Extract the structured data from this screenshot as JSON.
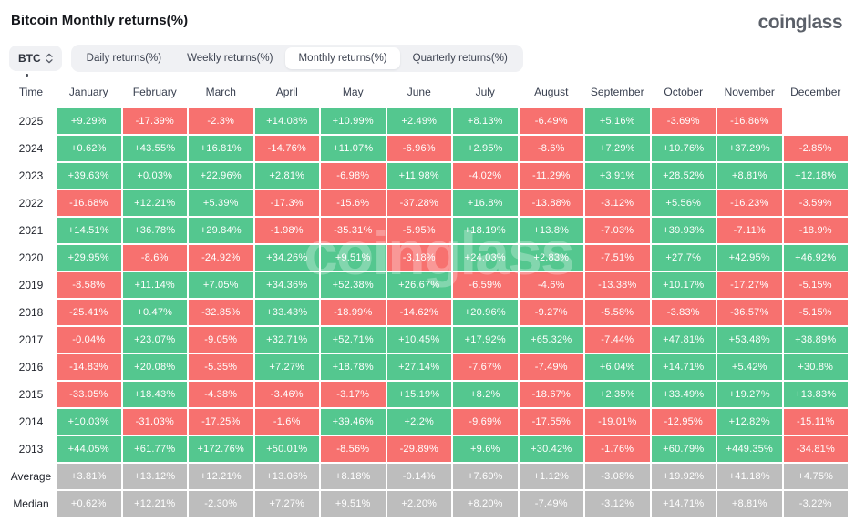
{
  "header": {
    "title": "Bitcoin Monthly returns(%)",
    "logo": "coinglass"
  },
  "controls": {
    "symbol_selector": {
      "label": "BTC",
      "icon": "updown-chevrons-icon"
    },
    "tabs": [
      {
        "label": "Daily returns(%)",
        "active": false
      },
      {
        "label": "Weekly returns(%)",
        "active": false
      },
      {
        "label": "Monthly returns(%)",
        "active": true
      },
      {
        "label": "Quarterly returns(%)",
        "active": false
      }
    ]
  },
  "colors": {
    "positive": "#54c78f",
    "negative": "#f7716f",
    "neutral": "#bdbdbd"
  },
  "watermark": "coinglass",
  "chart_data": {
    "type": "heatmap",
    "title": "Bitcoin Monthly returns(%)",
    "columns": [
      "Time",
      "January",
      "February",
      "March",
      "April",
      "May",
      "June",
      "July",
      "August",
      "September",
      "October",
      "November",
      "December"
    ],
    "rows": [
      {
        "label": "2025",
        "kind": "year",
        "values": [
          "+9.29%",
          "-17.39%",
          "-2.3%",
          "+14.08%",
          "+10.99%",
          "+2.49%",
          "+8.13%",
          "-6.49%",
          "+5.16%",
          "-3.69%",
          "-16.86%",
          null
        ]
      },
      {
        "label": "2024",
        "kind": "year",
        "values": [
          "+0.62%",
          "+43.55%",
          "+16.81%",
          "-14.76%",
          "+11.07%",
          "-6.96%",
          "+2.95%",
          "-8.6%",
          "+7.29%",
          "+10.76%",
          "+37.29%",
          "-2.85%"
        ]
      },
      {
        "label": "2023",
        "kind": "year",
        "values": [
          "+39.63%",
          "+0.03%",
          "+22.96%",
          "+2.81%",
          "-6.98%",
          "+11.98%",
          "-4.02%",
          "-11.29%",
          "+3.91%",
          "+28.52%",
          "+8.81%",
          "+12.18%"
        ]
      },
      {
        "label": "2022",
        "kind": "year",
        "values": [
          "-16.68%",
          "+12.21%",
          "+5.39%",
          "-17.3%",
          "-15.6%",
          "-37.28%",
          "+16.8%",
          "-13.88%",
          "-3.12%",
          "+5.56%",
          "-16.23%",
          "-3.59%"
        ]
      },
      {
        "label": "2021",
        "kind": "year",
        "values": [
          "+14.51%",
          "+36.78%",
          "+29.84%",
          "-1.98%",
          "-35.31%",
          "-5.95%",
          "+18.19%",
          "+13.8%",
          "-7.03%",
          "+39.93%",
          "-7.11%",
          "-18.9%"
        ]
      },
      {
        "label": "2020",
        "kind": "year",
        "values": [
          "+29.95%",
          "-8.6%",
          "-24.92%",
          "+34.26%",
          "+9.51%",
          "-3.18%",
          "+24.03%",
          "+2.83%",
          "-7.51%",
          "+27.7%",
          "+42.95%",
          "+46.92%"
        ]
      },
      {
        "label": "2019",
        "kind": "year",
        "values": [
          "-8.58%",
          "+11.14%",
          "+7.05%",
          "+34.36%",
          "+52.38%",
          "+26.67%",
          "-6.59%",
          "-4.6%",
          "-13.38%",
          "+10.17%",
          "-17.27%",
          "-5.15%"
        ]
      },
      {
        "label": "2018",
        "kind": "year",
        "values": [
          "-25.41%",
          "+0.47%",
          "-32.85%",
          "+33.43%",
          "-18.99%",
          "-14.62%",
          "+20.96%",
          "-9.27%",
          "-5.58%",
          "-3.83%",
          "-36.57%",
          "-5.15%"
        ]
      },
      {
        "label": "2017",
        "kind": "year",
        "values": [
          "-0.04%",
          "+23.07%",
          "-9.05%",
          "+32.71%",
          "+52.71%",
          "+10.45%",
          "+17.92%",
          "+65.32%",
          "-7.44%",
          "+47.81%",
          "+53.48%",
          "+38.89%"
        ]
      },
      {
        "label": "2016",
        "kind": "year",
        "values": [
          "-14.83%",
          "+20.08%",
          "-5.35%",
          "+7.27%",
          "+18.78%",
          "+27.14%",
          "-7.67%",
          "-7.49%",
          "+6.04%",
          "+14.71%",
          "+5.42%",
          "+30.8%"
        ]
      },
      {
        "label": "2015",
        "kind": "year",
        "values": [
          "-33.05%",
          "+18.43%",
          "-4.38%",
          "-3.46%",
          "-3.17%",
          "+15.19%",
          "+8.2%",
          "-18.67%",
          "+2.35%",
          "+33.49%",
          "+19.27%",
          "+13.83%"
        ]
      },
      {
        "label": "2014",
        "kind": "year",
        "values": [
          "+10.03%",
          "-31.03%",
          "-17.25%",
          "-1.6%",
          "+39.46%",
          "+2.2%",
          "-9.69%",
          "-17.55%",
          "-19.01%",
          "-12.95%",
          "+12.82%",
          "-15.11%"
        ]
      },
      {
        "label": "2013",
        "kind": "year",
        "values": [
          "+44.05%",
          "+61.77%",
          "+172.76%",
          "+50.01%",
          "-8.56%",
          "-29.89%",
          "+9.6%",
          "+30.42%",
          "-1.76%",
          "+60.79%",
          "+449.35%",
          "-34.81%"
        ]
      },
      {
        "label": "Average",
        "kind": "summary",
        "values": [
          "+3.81%",
          "+13.12%",
          "+12.21%",
          "+13.06%",
          "+8.18%",
          "-0.14%",
          "+7.60%",
          "+1.12%",
          "-3.08%",
          "+19.92%",
          "+41.18%",
          "+4.75%"
        ]
      },
      {
        "label": "Median",
        "kind": "summary",
        "values": [
          "+0.62%",
          "+12.21%",
          "-2.30%",
          "+7.27%",
          "+9.51%",
          "+2.20%",
          "+8.20%",
          "-7.49%",
          "-3.12%",
          "+14.71%",
          "+8.81%",
          "-3.22%"
        ]
      }
    ]
  }
}
